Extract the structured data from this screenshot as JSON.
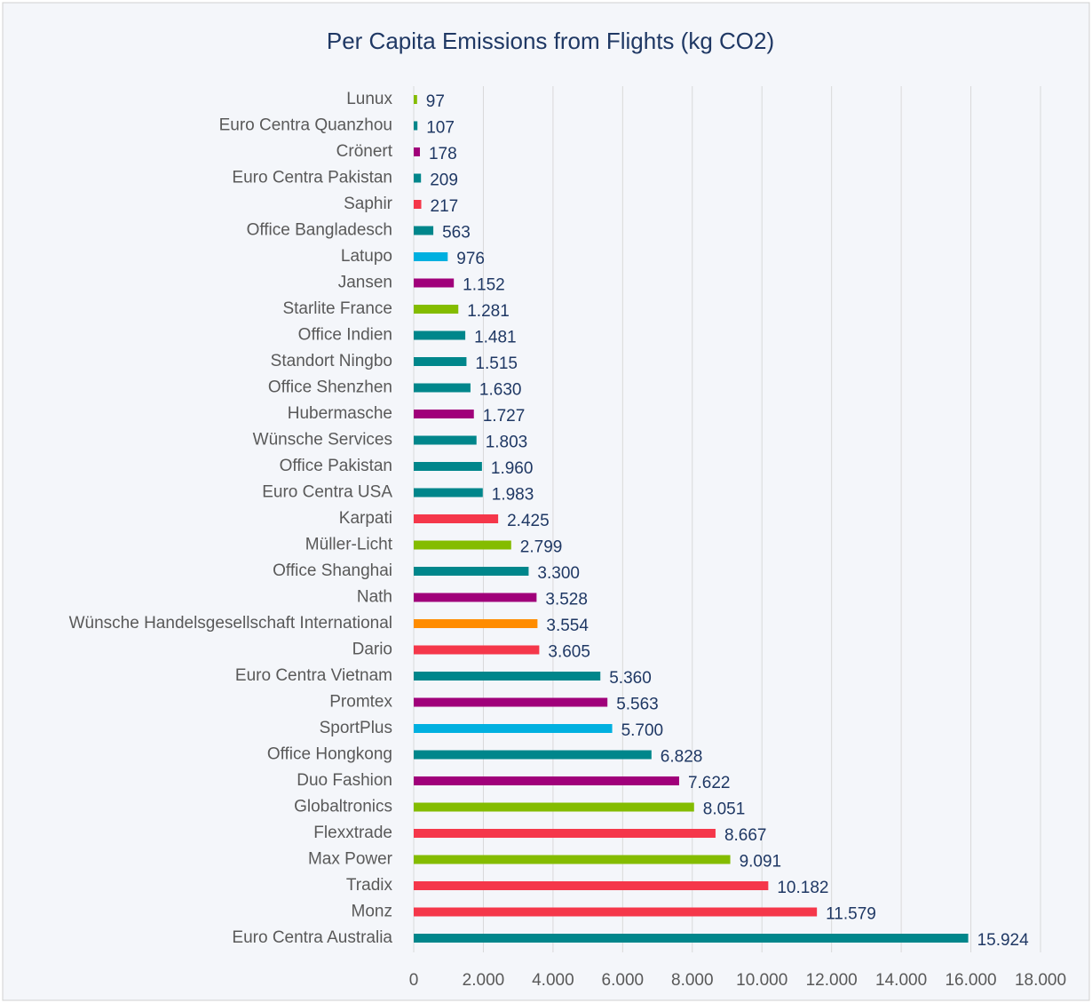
{
  "chart_data": {
    "type": "bar",
    "orientation": "horizontal",
    "title": "Per Capita Emissions from Flights (kg CO2)",
    "categories": [
      "Lunux",
      "Euro Centra Quanzhou",
      "Crönert",
      "Euro Centra Pakistan",
      "Saphir",
      "Office Bangladesch",
      "Latupo",
      "Jansen",
      "Starlite France",
      "Office Indien",
      "Standort Ningbo",
      "Office Shenzhen",
      "Hubermasche",
      "Wünsche Services",
      "Office Pakistan",
      "Euro Centra USA",
      "Karpati",
      "Müller-Licht",
      "Office Shanghai",
      "Nath",
      "Wünsche Handelsgesellschaft International",
      "Dario",
      "Euro Centra Vietnam",
      "Promtex",
      "SportPlus",
      "Office Hongkong",
      "Duo Fashion",
      "Globaltronics",
      "Flexxtrade",
      "Max Power",
      "Tradix",
      "Monz",
      "Euro Centra Australia"
    ],
    "values": [
      97,
      107,
      178,
      209,
      217,
      563,
      976,
      1152,
      1281,
      1481,
      1515,
      1630,
      1727,
      1803,
      1960,
      1983,
      2425,
      2799,
      3300,
      3528,
      3554,
      3605,
      5360,
      5563,
      5700,
      6828,
      7622,
      8051,
      8667,
      9091,
      10182,
      11579,
      15924
    ],
    "value_labels": [
      "97",
      "107",
      "178",
      "209",
      "217",
      "563",
      "976",
      "1.152",
      "1.281",
      "1.481",
      "1.515",
      "1.630",
      "1.727",
      "1.803",
      "1.960",
      "1.983",
      "2.425",
      "2.799",
      "3.300",
      "3.528",
      "3.554",
      "3.605",
      "5.360",
      "5.563",
      "5.700",
      "6.828",
      "7.622",
      "8.051",
      "8.667",
      "9.091",
      "10.182",
      "11.579",
      "15.924"
    ],
    "colors": [
      "#84bc00",
      "#00868b",
      "#a0007a",
      "#00868b",
      "#f5374a",
      "#00868b",
      "#00b0e0",
      "#a0007a",
      "#84bc00",
      "#00868b",
      "#00868b",
      "#00868b",
      "#a0007a",
      "#00868b",
      "#00868b",
      "#00868b",
      "#f5374a",
      "#84bc00",
      "#00868b",
      "#a0007a",
      "#ff8c00",
      "#f5374a",
      "#00868b",
      "#a0007a",
      "#00b0e0",
      "#00868b",
      "#a0007a",
      "#84bc00",
      "#f5374a",
      "#84bc00",
      "#f5374a",
      "#f5374a",
      "#00868b"
    ],
    "xlim": [
      0,
      18000
    ],
    "xticks": [
      0,
      {
        "value": 2000,
        "label": "2.000"
      },
      {
        "value": 4000,
        "label": "4.000"
      },
      {
        "value": 6000,
        "label": "6.000"
      },
      {
        "value": 8000,
        "label": "8.000"
      },
      {
        "value": 10000,
        "label": "10.000"
      },
      {
        "value": 12000,
        "label": "12.000"
      },
      {
        "value": 14000,
        "label": "14.000"
      },
      {
        "value": 16000,
        "label": "16.000"
      },
      {
        "value": 18000,
        "label": "18.000"
      }
    ],
    "grid": true
  }
}
